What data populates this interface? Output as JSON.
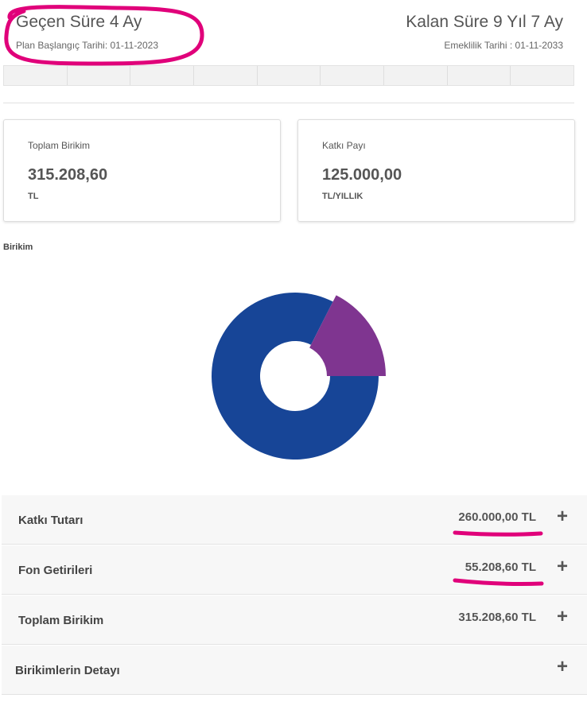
{
  "header": {
    "elapsed": "Geçen Süre 4 Ay",
    "start_date": "Plan Başlangıç Tarihi: 01-11-2023",
    "remaining": "Kalan Süre 9 Yıl 7 Ay",
    "retirement_date": "Emeklilik Tarihi : 01-11-2033"
  },
  "cards": [
    {
      "label": "Toplam Birikim",
      "value": "315.208,60",
      "unit": "TL"
    },
    {
      "label": "Katkı Payı",
      "value": "125.000,00",
      "unit": "TL/YILLIK"
    }
  ],
  "chart": {
    "type": "donut",
    "title": "Birikim",
    "values": [
      260000,
      55208.6
    ],
    "colors": [
      "#174597",
      "#7f3590"
    ]
  },
  "rows": [
    {
      "label": "Katkı Tutarı",
      "amount": "260.000,00 TL"
    },
    {
      "label": "Fon Getirileri",
      "amount": "55.208,60 TL"
    },
    {
      "label": "Toplam Birikim",
      "amount": "315.208,60 TL"
    },
    {
      "label": "Birikimlerin Detayı"
    }
  ]
}
